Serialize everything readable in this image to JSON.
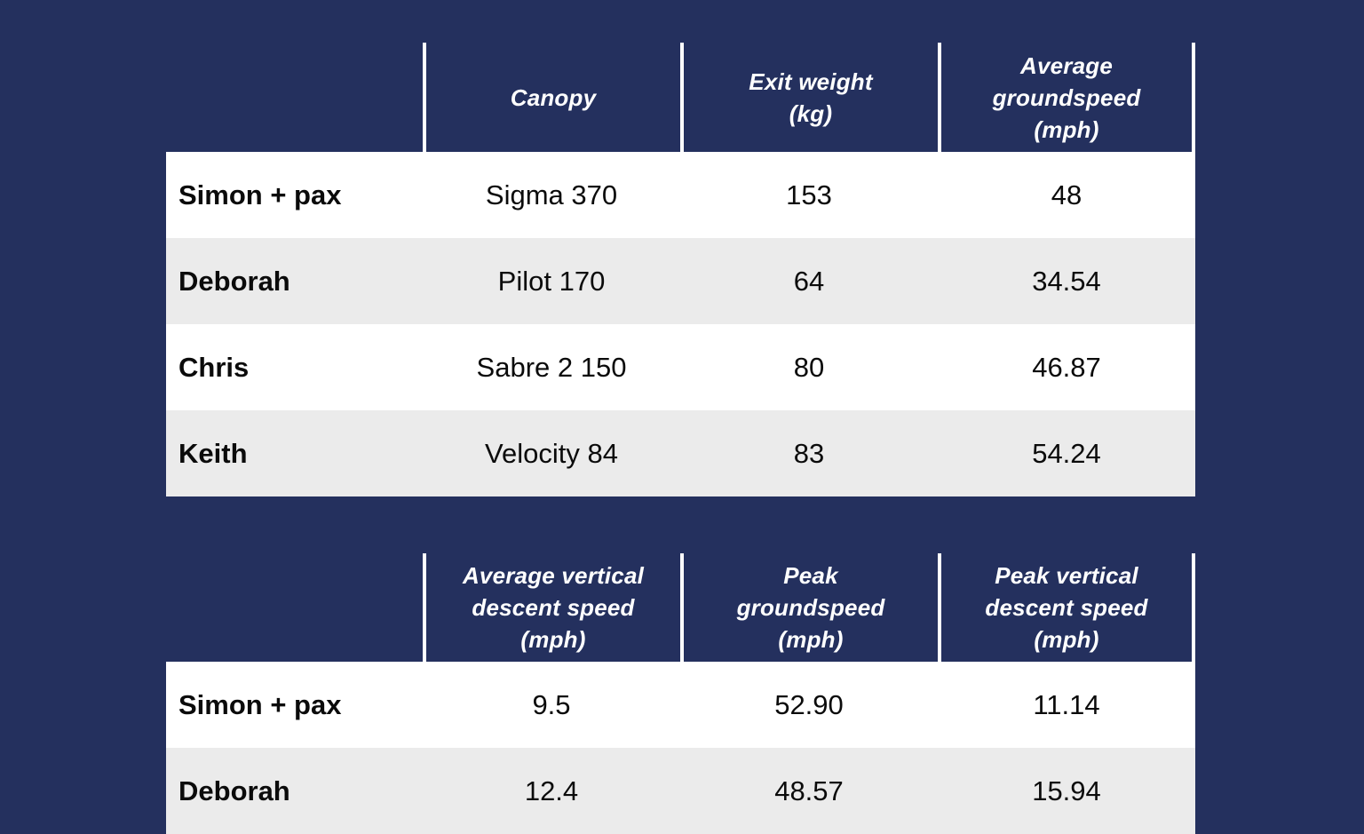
{
  "colors": {
    "background": "#24305E",
    "row": "#FFFFFF",
    "row_alt": "#EBEBEB",
    "divider": "#FFFFFF",
    "header_text": "#FFFFFF",
    "body_text": "#0B0B0B"
  },
  "tables": [
    {
      "name": "canopy-table",
      "header": [
        {
          "lines": []
        },
        {
          "lines": [
            "Canopy"
          ]
        },
        {
          "lines": [
            "Exit weight",
            "(kg)"
          ]
        },
        {
          "lines": [
            "Average",
            "groundspeed",
            "(mph)"
          ]
        }
      ],
      "rows": [
        {
          "label": "Simon + pax",
          "values": [
            "Sigma 370",
            "153",
            "48"
          ]
        },
        {
          "label": "Deborah",
          "values": [
            "Pilot 170",
            "64",
            "34.54"
          ]
        },
        {
          "label": "Chris",
          "values": [
            "Sabre 2 150",
            "80",
            "46.87"
          ]
        },
        {
          "label": "Keith",
          "values": [
            "Velocity 84",
            "83",
            "54.24"
          ]
        }
      ]
    },
    {
      "name": "speeds-table",
      "header": [
        {
          "lines": []
        },
        {
          "lines": [
            "Average vertical",
            "descent speed",
            "(mph)"
          ]
        },
        {
          "lines": [
            "Peak",
            "groundspeed",
            "(mph)"
          ]
        },
        {
          "lines": [
            "Peak vertical",
            "descent speed",
            "(mph)"
          ]
        }
      ],
      "rows": [
        {
          "label": "Simon + pax",
          "values": [
            "9.5",
            "52.90",
            "11.14"
          ]
        },
        {
          "label": "Deborah",
          "values": [
            "12.4",
            "48.57",
            "15.94"
          ]
        }
      ]
    }
  ],
  "chart_data": [
    {
      "type": "table",
      "columns": [
        "",
        "Canopy",
        "Exit weight (kg)",
        "Average groundspeed (mph)"
      ],
      "rows": [
        [
          "Simon + pax",
          "Sigma 370",
          153,
          48
        ],
        [
          "Deborah",
          "Pilot 170",
          64,
          34.54
        ],
        [
          "Chris",
          "Sabre 2 150",
          80,
          46.87
        ],
        [
          "Keith",
          "Velocity 84",
          83,
          54.24
        ]
      ]
    },
    {
      "type": "table",
      "columns": [
        "",
        "Average vertical descent speed (mph)",
        "Peak groundspeed (mph)",
        "Peak vertical descent speed (mph)"
      ],
      "rows": [
        [
          "Simon + pax",
          9.5,
          52.9,
          11.14
        ],
        [
          "Deborah",
          12.4,
          48.57,
          15.94
        ]
      ]
    }
  ]
}
